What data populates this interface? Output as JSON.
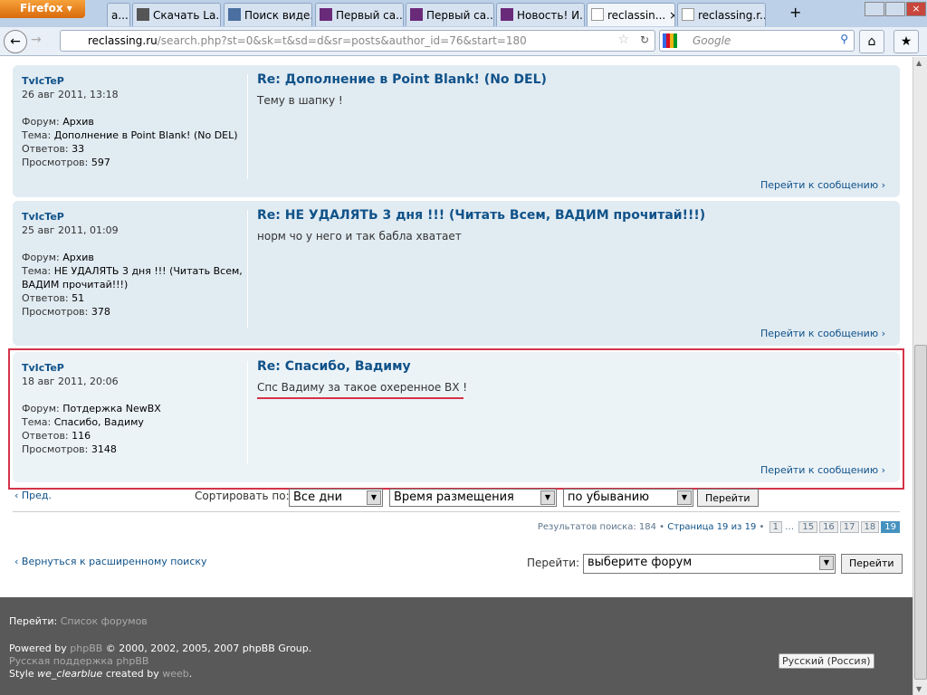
{
  "browser": {
    "menu_label": "Firefox",
    "tabs": [
      "a...",
      "Скачать La...",
      "Поиск виде...",
      "Первый са...",
      "Первый са...",
      "Новость! И...",
      "reclassin...",
      "reclassing.r..."
    ],
    "url_domain": "reclassing.ru",
    "url_path": "/search.php?st=0&sk=t&sd=d&sr=posts&author_id=76&start=180",
    "search_placeholder": "Google"
  },
  "posts": [
    {
      "author": "TvIcTeP",
      "date": "26 авг 2011, 13:18",
      "forum_label": "Форум:",
      "forum": "Архив",
      "topic_label": "Тема:",
      "topic": "Дополнение в Point Blank! (No DEL)",
      "replies_label": "Ответов:",
      "replies": "33",
      "views_label": "Просмотров:",
      "views": "597",
      "title": "Re: Дополнение в Point Blank! (No DEL)",
      "body": "Тему в шапку !",
      "jump": "Перейти к сообщению"
    },
    {
      "author": "TvIcTeP",
      "date": "25 авг 2011, 01:09",
      "forum_label": "Форум:",
      "forum": "Архив",
      "topic_label": "Тема:",
      "topic": "НЕ УДАЛЯТЬ 3 дня !!! (Читать Всем, ВАДИМ прочитай!!!)",
      "replies_label": "Ответов:",
      "replies": "51",
      "views_label": "Просмотров:",
      "views": "378",
      "title": "Re: НЕ УДАЛЯТЬ 3 дня !!! (Читать Всем, ВАДИМ прочитай!!!)",
      "body": "норм чо у него и так бабла хватает",
      "jump": "Перейти к сообщению"
    },
    {
      "author": "TvIcTeP",
      "date": "18 авг 2011, 20:06",
      "forum_label": "Форум:",
      "forum": "Потдержка NewBX",
      "topic_label": "Тема:",
      "topic": "Спасибо, Вадиму",
      "replies_label": "Ответов:",
      "replies": "116",
      "views_label": "Просмотров:",
      "views": "3148",
      "title": "Re: Спасибо, Вадиму",
      "body": "Спс Вадиму за такое охеренное ВХ !",
      "jump": "Перейти к сообщению"
    }
  ],
  "sort": {
    "prev": "Пред.",
    "label": "Сортировать по:",
    "days": "Все дни",
    "field": "Время размещения",
    "order": "по убыванию",
    "go": "Перейти"
  },
  "pagination": {
    "results": "Результатов поиска: 184",
    "page": "Страница 19 из 19",
    "pages": [
      "1",
      "15",
      "16",
      "17",
      "18",
      "19"
    ],
    "current": "19"
  },
  "back_link": "Вернуться к расширенному поиску",
  "jumpbox": {
    "label": "Перейти:",
    "value": "выберите форум",
    "go": "Перейти"
  },
  "footer": {
    "jump_label": "Перейти:",
    "jump_link": "Список форумов",
    "powered": "Powered by",
    "phpbb": "phpBB",
    "copy": "© 2000, 2002, 2005, 2007 phpBB Group.",
    "ru_support": "Русская поддержка phpBB",
    "style": "Style",
    "style_name": "we_clearblue",
    "created": "created by",
    "author": "weeb",
    "lang": "Русский (Россия)"
  }
}
